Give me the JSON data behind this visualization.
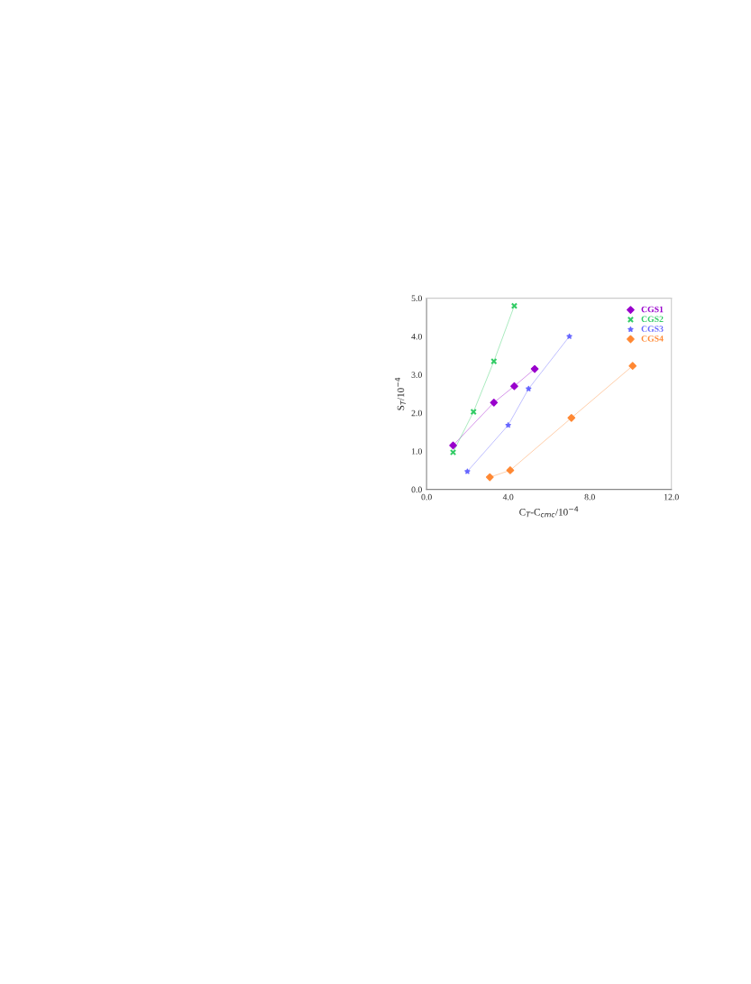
{
  "chart_data": {
    "type": "line",
    "xlabel": "C$_{T}$-C$_{cmc}$/10$^{−4}$",
    "ylabel": "S$_{T}$/10$^{−4}$",
    "xlim": [
      0,
      12
    ],
    "ylim": [
      0,
      5
    ],
    "xticks": [
      {
        "value": 0,
        "label": "0.0"
      },
      {
        "value": 4,
        "label": "4.0"
      },
      {
        "value": 8,
        "label": "8.0"
      },
      {
        "value": 12,
        "label": "12.0"
      }
    ],
    "yticks": [
      {
        "value": 0,
        "label": "0.0"
      },
      {
        "value": 1,
        "label": "1.0"
      },
      {
        "value": 2,
        "label": "2.0"
      },
      {
        "value": 3,
        "label": "3.0"
      },
      {
        "value": 4,
        "label": "4.0"
      },
      {
        "value": 5,
        "label": "5.0"
      }
    ],
    "grid": false,
    "legend": "top right",
    "series": [
      {
        "name": "CGS1",
        "color": "#9900cc",
        "marker": "diamond",
        "x": [
          1.3,
          3.3,
          4.3,
          5.3
        ],
        "values": [
          1.15,
          2.27,
          2.7,
          3.15
        ]
      },
      {
        "name": "CGS2",
        "color": "#33cc66",
        "marker": "cross",
        "x": [
          1.3,
          2.3,
          3.3,
          4.3
        ],
        "values": [
          0.97,
          2.03,
          3.35,
          4.8
        ]
      },
      {
        "name": "CGS3",
        "color": "#6666ff",
        "marker": "star",
        "x": [
          2.0,
          4.0,
          5.0,
          7.0
        ],
        "values": [
          0.47,
          1.68,
          2.63,
          4.0
        ]
      },
      {
        "name": "CGS4",
        "color": "#ff8833",
        "marker": "diamond",
        "x": [
          3.1,
          4.1,
          7.1,
          10.1
        ],
        "values": [
          0.32,
          0.5,
          1.87,
          3.23
        ]
      }
    ]
  }
}
